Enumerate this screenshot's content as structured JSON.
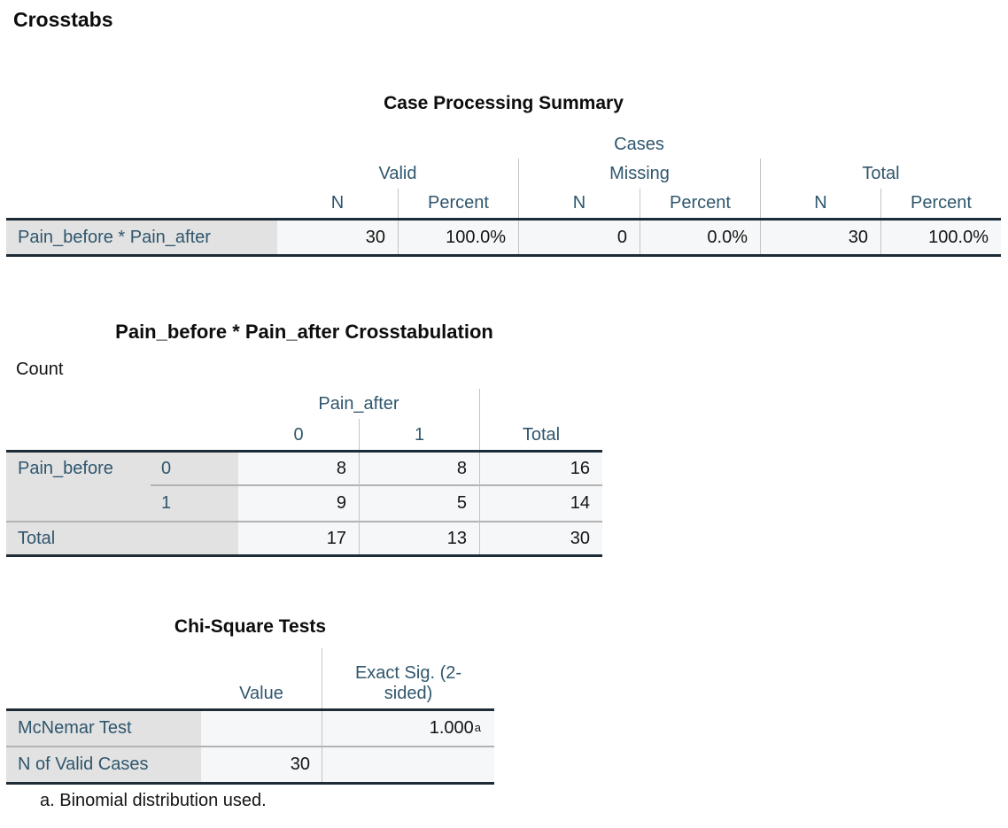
{
  "page": {
    "title": "Crosstabs"
  },
  "colors": {
    "header_text": "#2f566d",
    "stub_background": "#e2e2e2",
    "cell_background": "#f6f7f8",
    "thick_border": "#1c2b36",
    "separator": "#b3b3b3"
  },
  "case_processing": {
    "title": "Case Processing Summary",
    "spanner": "Cases",
    "groups": [
      {
        "label": "Valid"
      },
      {
        "label": "Missing"
      },
      {
        "label": "Total"
      }
    ],
    "col_headers": [
      "N",
      "Percent",
      "N",
      "Percent",
      "N",
      "Percent"
    ],
    "row": {
      "label": "Pain_before * Pain_after",
      "values": [
        "30",
        "100.0%",
        "0",
        "0.0%",
        "30",
        "100.0%"
      ]
    }
  },
  "crosstab": {
    "title": "Pain_before * Pain_after Crosstabulation",
    "layer_label": "Count",
    "col_var": "Pain_after",
    "col_categories": [
      "0",
      "1"
    ],
    "total_label": "Total",
    "row_var": "Pain_before",
    "rows": [
      {
        "category": "0",
        "values": [
          "8",
          "8",
          "16"
        ]
      },
      {
        "category": "1",
        "values": [
          "9",
          "5",
          "14"
        ]
      }
    ],
    "total_row": {
      "label": "Total",
      "values": [
        "17",
        "13",
        "30"
      ]
    }
  },
  "chi_square": {
    "title": "Chi-Square Tests",
    "col_headers": [
      "Value",
      "Exact Sig. (2-sided)"
    ],
    "rows": [
      {
        "label": "McNemar Test",
        "value": "",
        "exact_sig": "1.000",
        "sig_marker": "a"
      },
      {
        "label": "N of Valid Cases",
        "value": "30",
        "exact_sig": ""
      }
    ],
    "footnote": "a. Binomial distribution used."
  }
}
